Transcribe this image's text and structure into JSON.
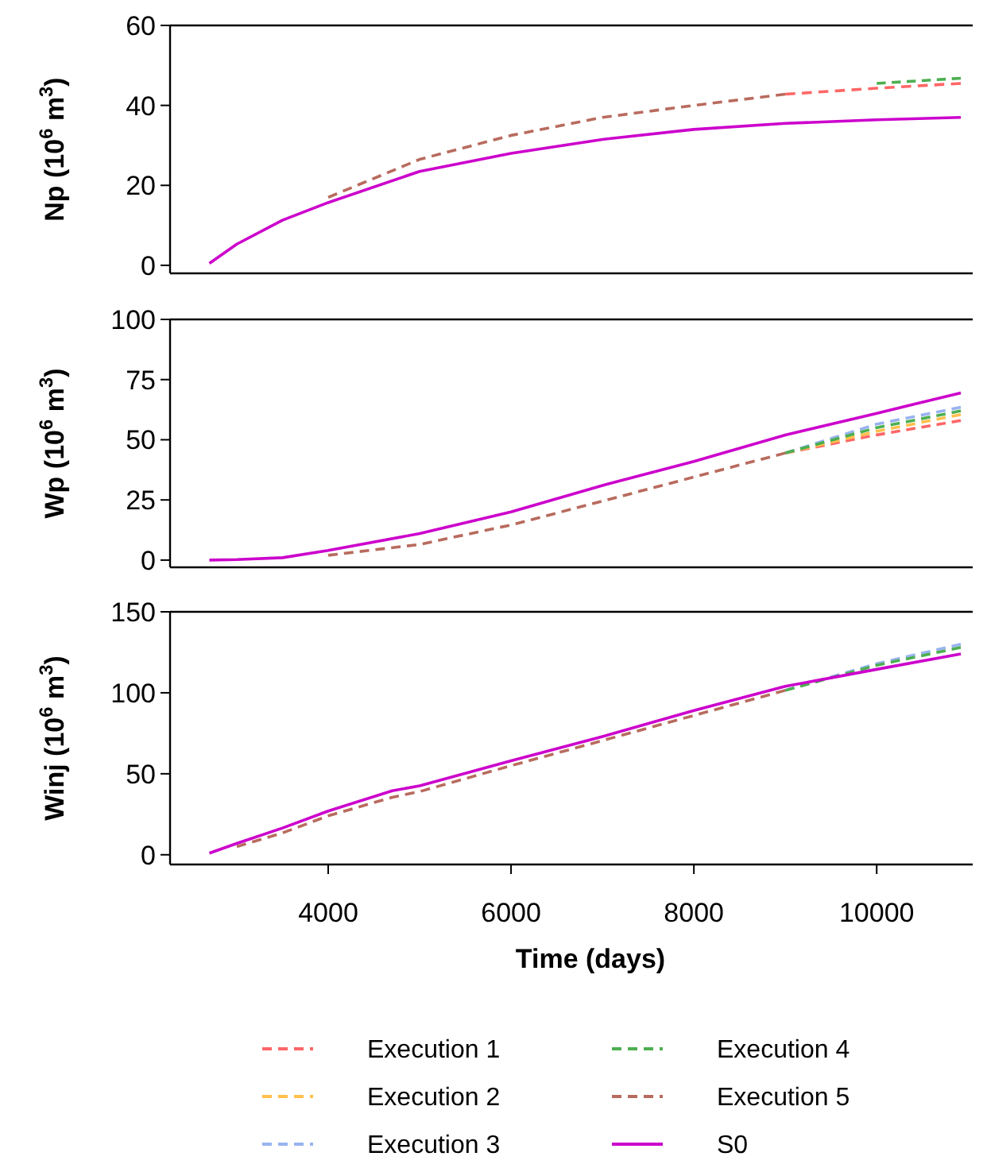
{
  "chart_data": [
    {
      "type": "line",
      "ylabel": "Np (10$^{6}$ m$^{3}$)",
      "xlim": [
        2270,
        11050
      ],
      "ylim": [
        -2,
        60
      ],
      "yticks": [
        0,
        20,
        40,
        60
      ],
      "tick_labels": "y",
      "grid": false,
      "legend": false,
      "marker": "none",
      "x": [
        2700,
        3000,
        3500,
        4000,
        5000,
        6000,
        7000,
        8000,
        9000,
        10000,
        10920
      ],
      "series": [
        {
          "color": "#ff6666",
          "line_style": "dashed",
          "values": [
            null,
            null,
            null,
            null,
            null,
            null,
            null,
            null,
            42.8,
            44.3,
            45.5
          ]
        },
        {
          "color": "#4caf50",
          "line_style": "dashed",
          "values": [
            null,
            null,
            null,
            null,
            null,
            null,
            null,
            null,
            null,
            45.5,
            46.8
          ]
        },
        {
          "color": "#b86b5e",
          "line_style": "dashed",
          "values": [
            null,
            null,
            null,
            17,
            26.5,
            32.5,
            37,
            40,
            42.8,
            null,
            null
          ]
        },
        {
          "color": "#cc00cc",
          "line_style": "solid",
          "values": [
            0.5,
            5.3,
            11.3,
            15.7,
            23.5,
            28,
            31.5,
            34,
            35.5,
            36.4,
            37
          ]
        }
      ]
    },
    {
      "type": "line",
      "ylabel": "Wp (10$^{6}$ m$^{3}$)",
      "xlim": [
        2270,
        11050
      ],
      "ylim": [
        -3,
        100
      ],
      "yticks": [
        0,
        25,
        50,
        75,
        100
      ],
      "tick_labels": "y",
      "grid": false,
      "legend": "bottom",
      "marker": "none",
      "x": [
        2700,
        3000,
        3500,
        4000,
        5000,
        6000,
        7000,
        8000,
        9000,
        10000,
        10920
      ],
      "series": [
        {
          "name": "Execution 1",
          "color": "#ff6666",
          "line_style": "dashed",
          "values": [
            null,
            null,
            null,
            null,
            null,
            null,
            null,
            null,
            44.5,
            52,
            58
          ]
        },
        {
          "name": "Execution 2",
          "color": "#ffc04d",
          "line_style": "dashed",
          "values": [
            null,
            null,
            null,
            null,
            null,
            null,
            null,
            null,
            44.5,
            53.5,
            60.5
          ]
        },
        {
          "name": "Execution 3",
          "color": "#99b3f0",
          "line_style": "dashed",
          "values": [
            null,
            null,
            null,
            null,
            null,
            null,
            null,
            null,
            44.5,
            56.5,
            63.5
          ]
        },
        {
          "name": "Execution 4",
          "color": "#4caf50",
          "line_style": "dashed",
          "values": [
            null,
            null,
            null,
            null,
            null,
            null,
            null,
            null,
            44.5,
            55,
            62
          ]
        },
        {
          "name": "Execution 5",
          "color": "#b86b5e",
          "line_style": "dashed",
          "values": [
            null,
            null,
            null,
            2,
            6.5,
            14.6,
            24.5,
            34.5,
            44.5,
            null,
            null
          ]
        },
        {
          "name": "S0",
          "color": "#cc00cc",
          "line_style": "solid",
          "values": [
            0,
            0.2,
            1,
            4,
            11,
            20,
            31,
            41,
            52,
            61,
            69.5
          ]
        }
      ]
    },
    {
      "type": "line",
      "ylabel": "Winj (10$^{6}$ m$^{3}$)",
      "xlabel": "Time (days)",
      "xlim": [
        2270,
        11050
      ],
      "ylim": [
        -6,
        150
      ],
      "yticks": [
        0,
        50,
        100,
        150
      ],
      "xticks": [
        4000,
        6000,
        8000,
        10000
      ],
      "grid": false,
      "legend": false,
      "marker": "none",
      "x": [
        2700,
        3000,
        3500,
        4000,
        4700,
        5000,
        6000,
        7000,
        8000,
        9000,
        10000,
        10920
      ],
      "series": [
        {
          "color": "#99b3f0",
          "line_style": "dashed",
          "values": [
            null,
            null,
            null,
            null,
            null,
            null,
            null,
            null,
            null,
            101.5,
            118,
            130
          ]
        },
        {
          "color": "#4caf50",
          "line_style": "dashed",
          "values": [
            null,
            null,
            null,
            null,
            null,
            null,
            null,
            null,
            null,
            101.5,
            117,
            128
          ]
        },
        {
          "color": "#b86b5e",
          "line_style": "dashed",
          "values": [
            null,
            5,
            13.5,
            24,
            35.5,
            39,
            55,
            70.5,
            86,
            101.5,
            null,
            null
          ]
        },
        {
          "color": "#cc00cc",
          "line_style": "solid",
          "values": [
            1,
            7,
            16.5,
            27,
            39.5,
            42.6,
            58,
            73,
            89,
            104,
            114.5,
            124
          ]
        }
      ]
    }
  ]
}
